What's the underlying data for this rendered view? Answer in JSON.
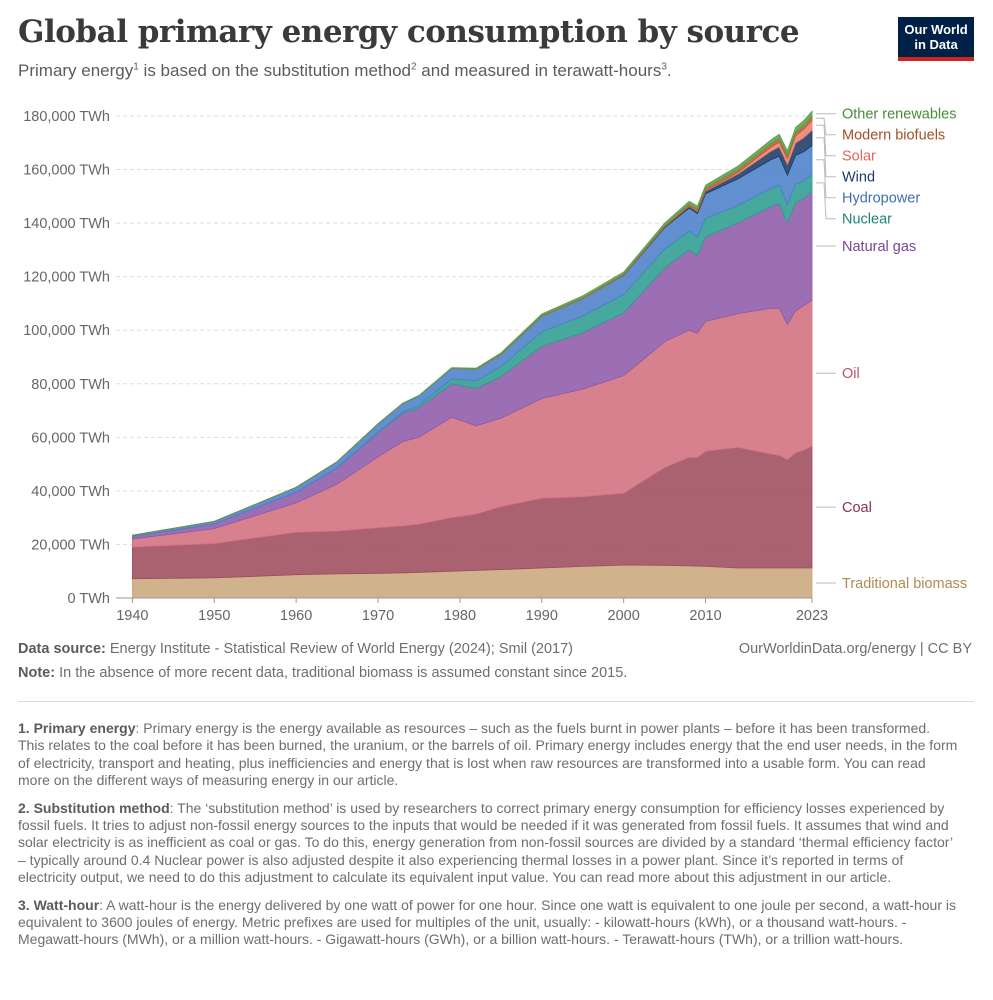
{
  "header": {
    "title": "Global primary energy consumption by source",
    "subtitle_1": "Primary energy",
    "subtitle_sup1": "1",
    "subtitle_2": " is based on the substitution method",
    "subtitle_sup2": "2",
    "subtitle_3": " and measured in terawatt-hours",
    "subtitle_sup3": "3",
    "subtitle_4": ".",
    "logo_line1": "Our World",
    "logo_line2": "in Data"
  },
  "footer": {
    "source_label": "Data source:",
    "source_text": " Energy Institute - Statistical Review of World Energy (2024); Smil (2017)",
    "license": "OurWorldinData.org/energy | CC BY",
    "note_label": "Note:",
    "note_text": " In the absence of more recent data, traditional biomass is assumed constant since 2015."
  },
  "footnotes": [
    {
      "label": "1. Primary energy",
      "text": ": Primary energy is the energy available as resources – such as the fuels burnt in power plants – before it has been transformed. This relates to the coal before it has been burned, the uranium, or the barrels of oil. Primary energy includes energy that the end user needs, in the form of electricity, transport and heating, plus inefficiencies and energy that is lost when raw resources are transformed into a usable form. You can read more on the different ways of measuring energy in our article."
    },
    {
      "label": "2. Substitution method",
      "text": ": The ‘substitution method’ is used by researchers to correct primary energy consumption for efficiency losses experienced by fossil fuels. It tries to adjust non-fossil energy sources to the inputs that would be needed if it was generated from fossil fuels. It assumes that wind and solar electricity is as inefficient as coal or gas. To do this, energy generation from non-fossil sources are divided by a standard ‘thermal efficiency factor’ – typically around 0.4 Nuclear power is also adjusted despite it also experiencing thermal losses in a power plant. Since it’s reported in terms of electricity output, we need to do this adjustment to calculate its equivalent input value. You can read more about this adjustment in our article."
    },
    {
      "label": "3. Watt-hour",
      "text": ": A watt-hour is the energy delivered by one watt of power for one hour. Since one watt is equivalent to one joule per second, a watt-hour is equivalent to 3600 joules of energy. Metric prefixes are used for multiples of the unit, usually: - kilowatt-hours (kWh), or a thousand watt-hours. - Megawatt-hours (MWh), or a million watt-hours. - Gigawatt-hours (GWh), or a billion watt-hours. - Terawatt-hours (TWh), or a trillion watt-hours."
    }
  ],
  "colors": {
    "Traditional biomass": "#c9a77c",
    "Coal": "#9e4b5c",
    "Oil": "#d1707f",
    "Natural gas": "#8e5aa8",
    "Nuclear": "#2e9d8f",
    "Hydropower": "#4c7fc8",
    "Wind": "#1c3a66",
    "Solar": "#ec7f6e",
    "Modern biofuels": "#b5602f",
    "Other renewables": "#5a9e4c",
    "label_Traditional biomass": "#b08a55",
    "label_Coal": "#8a3346",
    "label_Oil": "#c2506a",
    "label_Natural gas": "#7a4496",
    "label_Nuclear": "#1f8576",
    "label_Hydropower": "#3f6fb0",
    "label_Wind": "#1c3a66",
    "label_Solar": "#e06a56",
    "label_Modern biofuels": "#a54f25",
    "label_Other renewables": "#4a8a3c"
  },
  "chart_data": {
    "type": "area",
    "stacked": true,
    "title": "Global primary energy consumption by source",
    "ylabel": "TWh",
    "ylim": [
      0,
      180000
    ],
    "y_ticks": [
      0,
      20000,
      40000,
      60000,
      80000,
      100000,
      120000,
      140000,
      160000,
      180000
    ],
    "y_tick_labels": [
      "0 TWh",
      "20,000 TWh",
      "40,000 TWh",
      "60,000 TWh",
      "80,000 TWh",
      "100,000 TWh",
      "120,000 TWh",
      "140,000 TWh",
      "160,000 TWh",
      "180,000 TWh"
    ],
    "x_ticks": [
      1940,
      1950,
      1960,
      1970,
      1980,
      1990,
      2000,
      2010,
      2023
    ],
    "x_tick_labels": [
      "1940",
      "1950",
      "1960",
      "1970",
      "1980",
      "1990",
      "2000",
      "2010",
      "2023"
    ],
    "x": [
      1940,
      1950,
      1960,
      1965,
      1970,
      1973,
      1975,
      1979,
      1982,
      1985,
      1990,
      1995,
      2000,
      2005,
      2008,
      2009,
      2010,
      2014,
      2018,
      2019,
      2020,
      2021,
      2022,
      2023
    ],
    "series": [
      {
        "name": "Traditional biomass",
        "values": [
          7200,
          7500,
          8700,
          9000,
          9200,
          9400,
          9600,
          10000,
          10300,
          10600,
          11200,
          11800,
          12300,
          12200,
          12000,
          11900,
          11800,
          11200,
          11200,
          11200,
          11200,
          11200,
          11200,
          11200
        ]
      },
      {
        "name": "Coal",
        "values": [
          11800,
          12800,
          15800,
          16000,
          17000,
          17500,
          18000,
          20000,
          21000,
          23500,
          26000,
          26000,
          26800,
          36500,
          40500,
          40500,
          43000,
          45000,
          42500,
          42000,
          40500,
          43000,
          44000,
          45500
        ]
      },
      {
        "name": "Oil",
        "values": [
          3000,
          5600,
          11000,
          17500,
          26500,
          31500,
          32500,
          37500,
          33000,
          33000,
          37300,
          40200,
          43900,
          47000,
          47500,
          46500,
          48500,
          50000,
          54500,
          55000,
          50500,
          53000,
          54000,
          54500
        ]
      },
      {
        "name": "Natural gas",
        "values": [
          900,
          1800,
          4000,
          6000,
          9000,
          10500,
          11000,
          12500,
          14000,
          15500,
          19500,
          21000,
          23500,
          27500,
          30000,
          29000,
          31500,
          34000,
          38000,
          39000,
          38000,
          40500,
          40000,
          40500
        ]
      },
      {
        "name": "Nuclear",
        "values": [
          0,
          0,
          0,
          200,
          300,
          500,
          900,
          1800,
          2800,
          3800,
          5400,
          6300,
          6800,
          7100,
          7000,
          6900,
          7000,
          6400,
          6800,
          7000,
          6700,
          6900,
          6500,
          6600
        ]
      },
      {
        "name": "Hydropower",
        "values": [
          500,
          900,
          1800,
          2200,
          3000,
          3200,
          3500,
          4000,
          4300,
          4500,
          5800,
          6500,
          7200,
          8000,
          8600,
          8700,
          9200,
          10000,
          10700,
          10800,
          11000,
          10700,
          11000,
          10700
        ]
      },
      {
        "name": "Wind",
        "values": [
          0,
          0,
          0,
          0,
          0,
          0,
          0,
          0,
          0,
          0,
          0,
          0,
          100,
          300,
          600,
          750,
          900,
          1800,
          3200,
          3500,
          4000,
          4600,
          5200,
          5700
        ]
      },
      {
        "name": "Solar",
        "values": [
          0,
          0,
          0,
          0,
          0,
          0,
          0,
          0,
          0,
          0,
          0,
          0,
          0,
          0,
          50,
          100,
          200,
          600,
          1500,
          1800,
          2200,
          2700,
          3200,
          3700
        ]
      },
      {
        "name": "Modern biofuels",
        "values": [
          0,
          0,
          0,
          0,
          0,
          0,
          0,
          0,
          100,
          200,
          250,
          300,
          350,
          500,
          900,
          950,
          1000,
          1100,
          1200,
          1300,
          1200,
          1300,
          1400,
          1500
        ]
      },
      {
        "name": "Other renewables",
        "values": [
          0,
          0,
          0,
          0,
          100,
          150,
          150,
          200,
          300,
          400,
          600,
          700,
          800,
          900,
          1000,
          1050,
          1100,
          1300,
          1500,
          1600,
          1700,
          1800,
          1800,
          1900
        ]
      }
    ],
    "legend_order": [
      "Other renewables",
      "Modern biofuels",
      "Solar",
      "Wind",
      "Hydropower",
      "Nuclear",
      "Natural gas",
      "Oil",
      "Coal",
      "Traditional biomass"
    ],
    "legend_placement": "right, aligned to series at 2023"
  }
}
